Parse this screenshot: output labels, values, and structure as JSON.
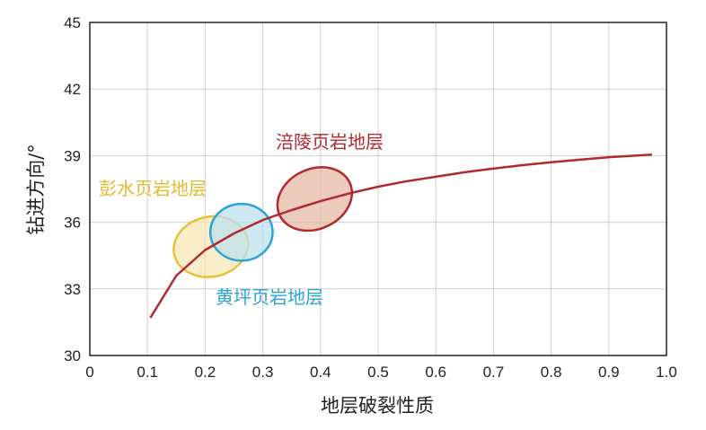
{
  "chart_data": {
    "type": "scatter",
    "xlabel": "地层破裂性质",
    "ylabel": "钻进方向/°",
    "xlim": [
      0,
      1.0
    ],
    "ylim": [
      30,
      45
    ],
    "x_ticks": [
      "0",
      "0.1",
      "0.2",
      "0.3",
      "0.4",
      "0.5",
      "0.6",
      "0.7",
      "0.8",
      "0.9",
      "1.0"
    ],
    "y_ticks": [
      "30",
      "33",
      "36",
      "39",
      "42",
      "45"
    ],
    "grid": true,
    "trend_curve": {
      "color": "#b22930",
      "x": [
        0.105,
        0.15,
        0.2,
        0.25,
        0.3,
        0.35,
        0.4,
        0.45,
        0.5,
        0.55,
        0.6,
        0.65,
        0.7,
        0.75,
        0.8,
        0.85,
        0.9,
        0.975
      ],
      "y": [
        31.7,
        33.6,
        34.75,
        35.5,
        36.1,
        36.55,
        36.95,
        37.3,
        37.6,
        37.85,
        38.05,
        38.25,
        38.42,
        38.57,
        38.7,
        38.82,
        38.93,
        39.05
      ]
    },
    "regions": [
      {
        "label": "彭水页岩地层",
        "color": "#e6c23a",
        "fill": "#f5e7b3",
        "cx": 0.21,
        "cy": 34.9,
        "rx": 0.065,
        "ry": 1.35
      },
      {
        "label": "黄坪页岩地层",
        "color": "#2aa3d6",
        "fill": "#bfe0ef",
        "cx": 0.263,
        "cy": 35.55,
        "rx": 0.054,
        "ry": 1.28
      },
      {
        "label": "涪陵页岩地层",
        "color": "#b22930",
        "fill": "#e7b9a6",
        "cx": 0.39,
        "cy": 37.05,
        "rx": 0.067,
        "ry": 1.35
      }
    ]
  }
}
